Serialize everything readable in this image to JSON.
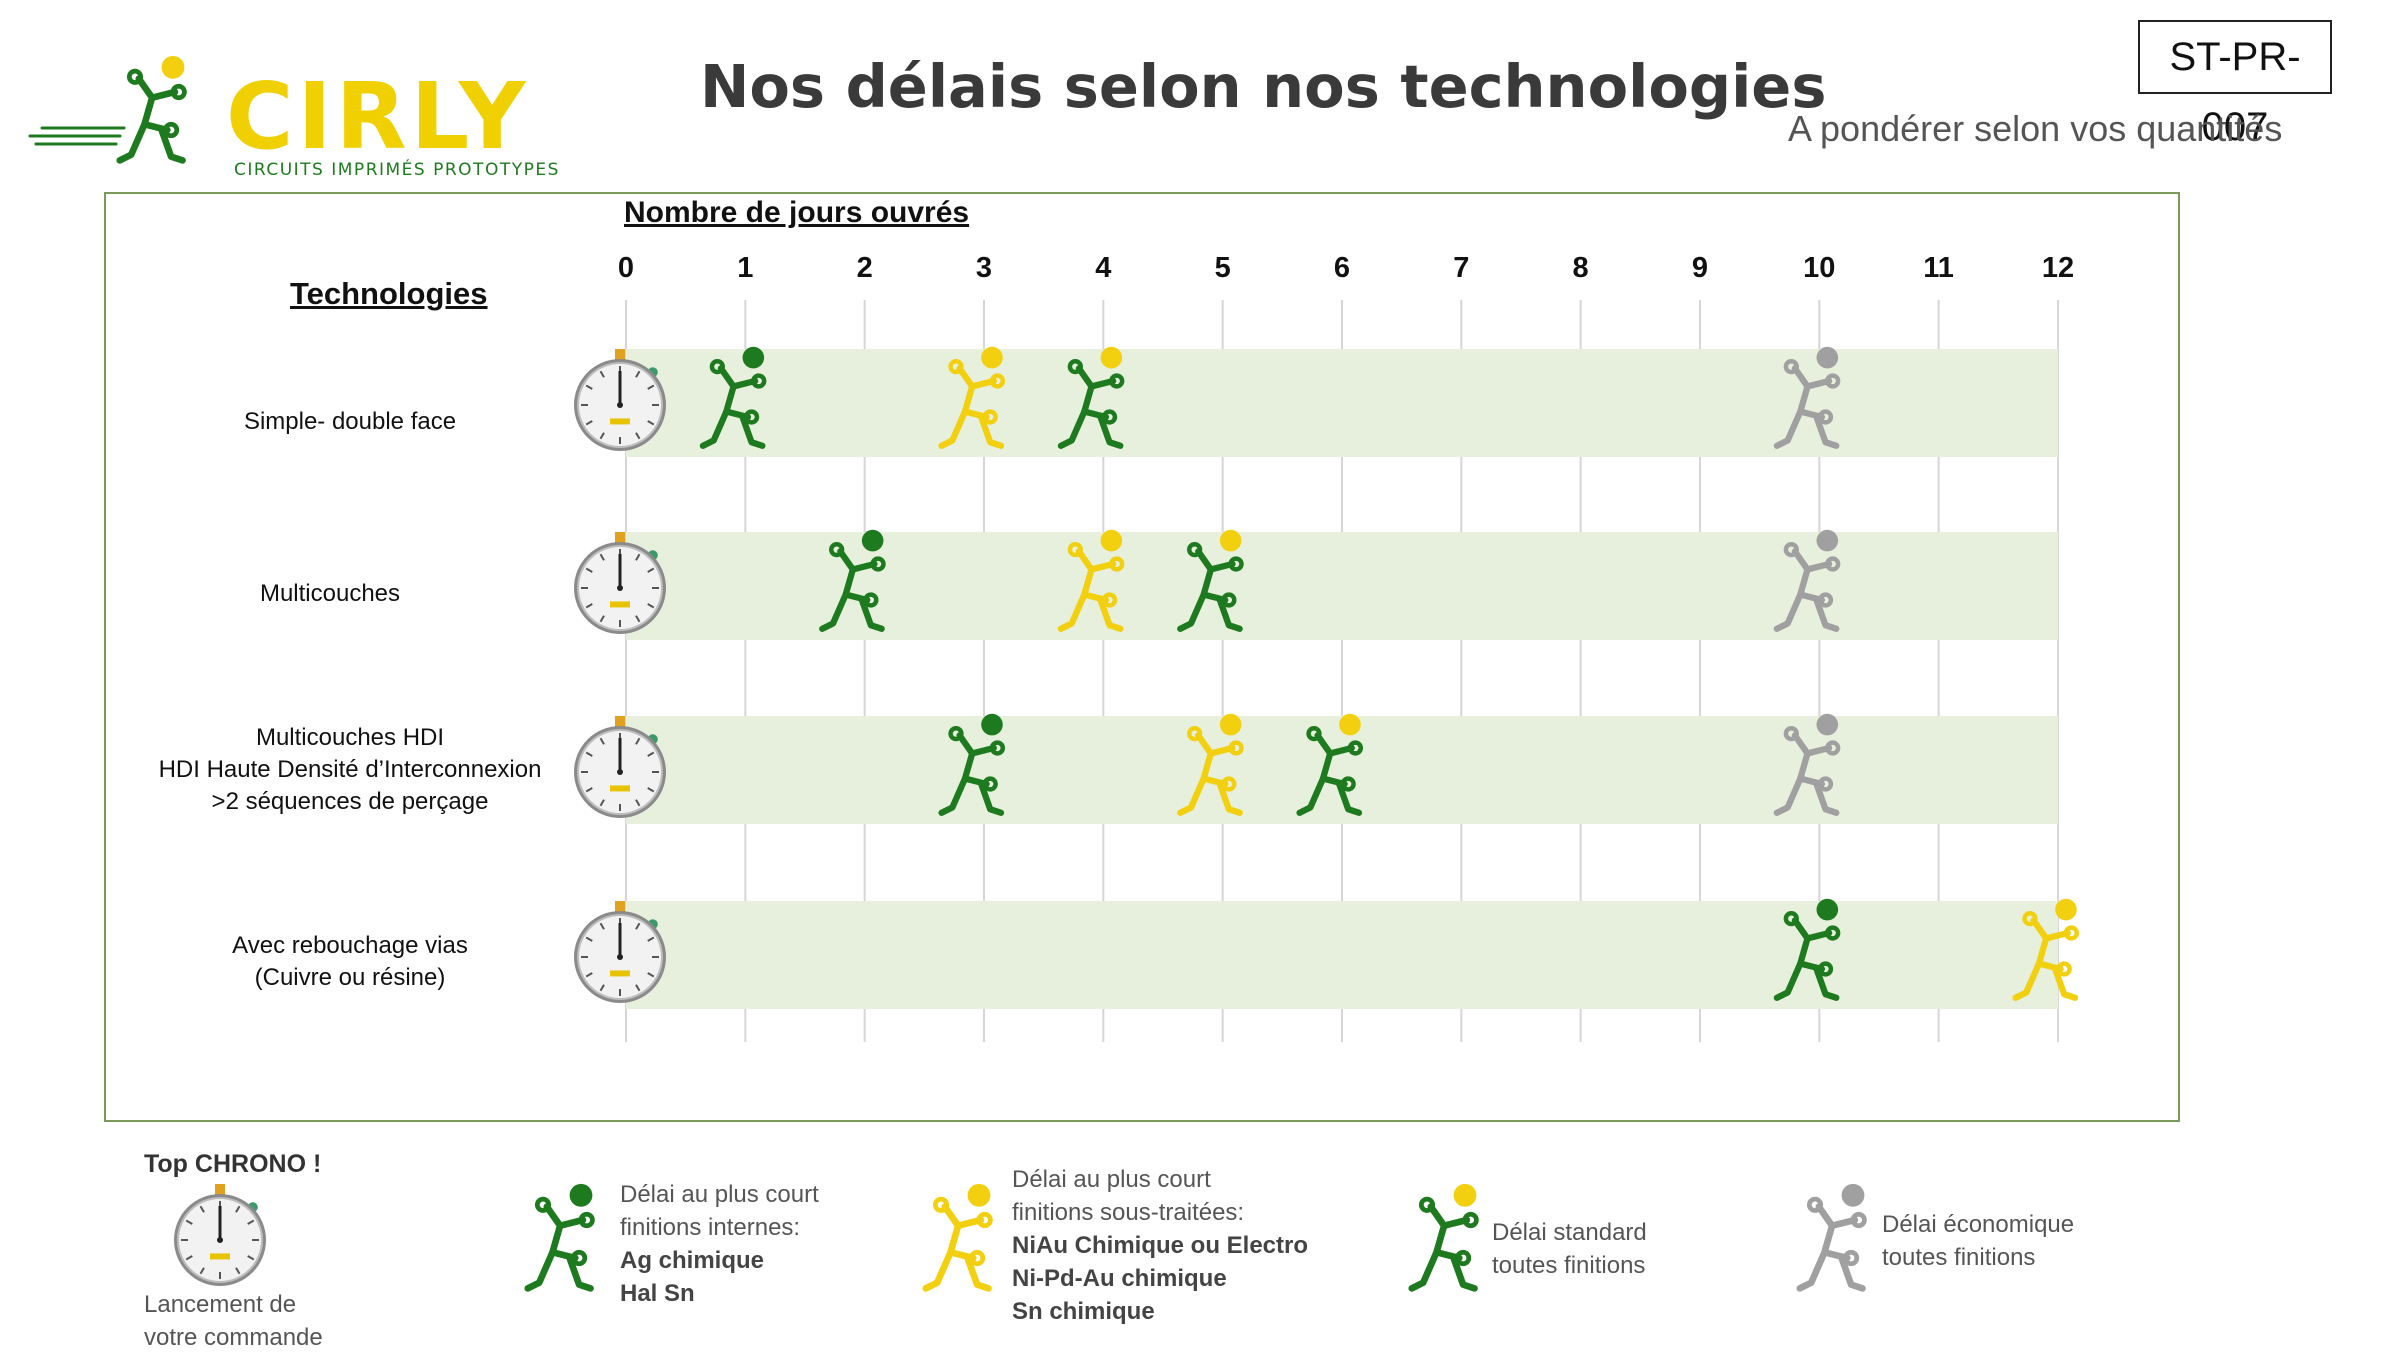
{
  "header": {
    "logo_text": "CIRLY",
    "logo_tagline": "CIRCUITS IMPRIMÉS PROTOTYPES",
    "title": "Nos délais selon nos technologies",
    "doc_ref": "ST-PR-007",
    "subtitle": "A pondérer selon vos quantités"
  },
  "colors": {
    "green": "#1e7a1e",
    "yellow": "#f2cf0f",
    "grey": "#a0a0a0",
    "band": "#e7f0dd",
    "logo_yellow": "#f0d000",
    "frame": "#7a9a5a"
  },
  "chart_data": {
    "type": "timeline",
    "xlabel": "Nombre de jours ouvrés",
    "ylabel": "Technologies",
    "x_ticks": [
      "0",
      "1",
      "2",
      "3",
      "4",
      "5",
      "6",
      "7",
      "8",
      "9",
      "10",
      "11",
      "12"
    ],
    "xlim": [
      0,
      12
    ],
    "categories": [
      "Simple- double face",
      "Multicouches",
      "Multicouches HDI\nHDI Haute Densité d’Interconnexion\n>2 séquences de perçage",
      "Avec rebouchage vias\n(Cuivre ou résine)"
    ],
    "start_icon": "stopwatch-icon",
    "markers": [
      {
        "row": 0,
        "x": 1,
        "figure": "green",
        "ball": "green"
      },
      {
        "row": 0,
        "x": 3,
        "figure": "yellow",
        "ball": "yellow"
      },
      {
        "row": 0,
        "x": 4,
        "figure": "green",
        "ball": "yellow"
      },
      {
        "row": 0,
        "x": 10,
        "figure": "grey",
        "ball": "grey"
      },
      {
        "row": 1,
        "x": 2,
        "figure": "green",
        "ball": "green"
      },
      {
        "row": 1,
        "x": 4,
        "figure": "yellow",
        "ball": "yellow"
      },
      {
        "row": 1,
        "x": 5,
        "figure": "green",
        "ball": "yellow"
      },
      {
        "row": 1,
        "x": 10,
        "figure": "grey",
        "ball": "grey"
      },
      {
        "row": 2,
        "x": 3,
        "figure": "green",
        "ball": "green"
      },
      {
        "row": 2,
        "x": 5,
        "figure": "yellow",
        "ball": "yellow"
      },
      {
        "row": 2,
        "x": 6,
        "figure": "green",
        "ball": "yellow"
      },
      {
        "row": 2,
        "x": 10,
        "figure": "grey",
        "ball": "grey"
      },
      {
        "row": 3,
        "x": 10,
        "figure": "green",
        "ball": "green"
      },
      {
        "row": 3,
        "x": 12,
        "figure": "yellow",
        "ball": "yellow"
      }
    ]
  },
  "legend": {
    "chrono_title": "Top CHRONO !",
    "chrono_text": [
      "Lancement de",
      "votre commande"
    ],
    "green_lines": [
      "Délai au plus court",
      "finitions internes:"
    ],
    "green_bold": [
      "Ag chimique",
      "Hal Sn"
    ],
    "yellow_lines": [
      "Délai au plus court",
      "finitions sous-traitées:"
    ],
    "yellow_bold": [
      "NiAu Chimique ou Electro",
      "Ni-Pd-Au chimique",
      "Sn chimique"
    ],
    "standard_lines": [
      "Délai standard",
      "toutes finitions"
    ],
    "eco_lines": [
      "Délai économique",
      "toutes finitions"
    ]
  }
}
